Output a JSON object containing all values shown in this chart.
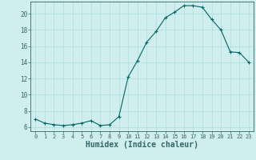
{
  "x": [
    0,
    1,
    2,
    3,
    4,
    5,
    6,
    7,
    8,
    9,
    10,
    11,
    12,
    13,
    14,
    15,
    16,
    17,
    18,
    19,
    20,
    21,
    22,
    23
  ],
  "y": [
    7.0,
    6.5,
    6.3,
    6.2,
    6.3,
    6.5,
    6.8,
    6.2,
    6.3,
    7.3,
    12.2,
    14.2,
    16.5,
    17.8,
    19.5,
    20.2,
    21.0,
    21.0,
    20.8,
    19.3,
    18.0,
    15.3,
    15.2,
    14.0
  ],
  "line_color": "#006666",
  "marker": "+",
  "marker_size": 3,
  "xlabel": "Humidex (Indice chaleur)",
  "xlabel_fontsize": 7,
  "xlim": [
    -0.5,
    23.5
  ],
  "ylim": [
    5.5,
    21.5
  ],
  "yticks": [
    6,
    8,
    10,
    12,
    14,
    16,
    18,
    20
  ],
  "xticks": [
    0,
    1,
    2,
    3,
    4,
    5,
    6,
    7,
    8,
    9,
    10,
    11,
    12,
    13,
    14,
    15,
    16,
    17,
    18,
    19,
    20,
    21,
    22,
    23
  ],
  "background_color": "#d0eeee",
  "grid_color": "#aadddd",
  "axes_color": "#336666",
  "tick_color": "#336666"
}
